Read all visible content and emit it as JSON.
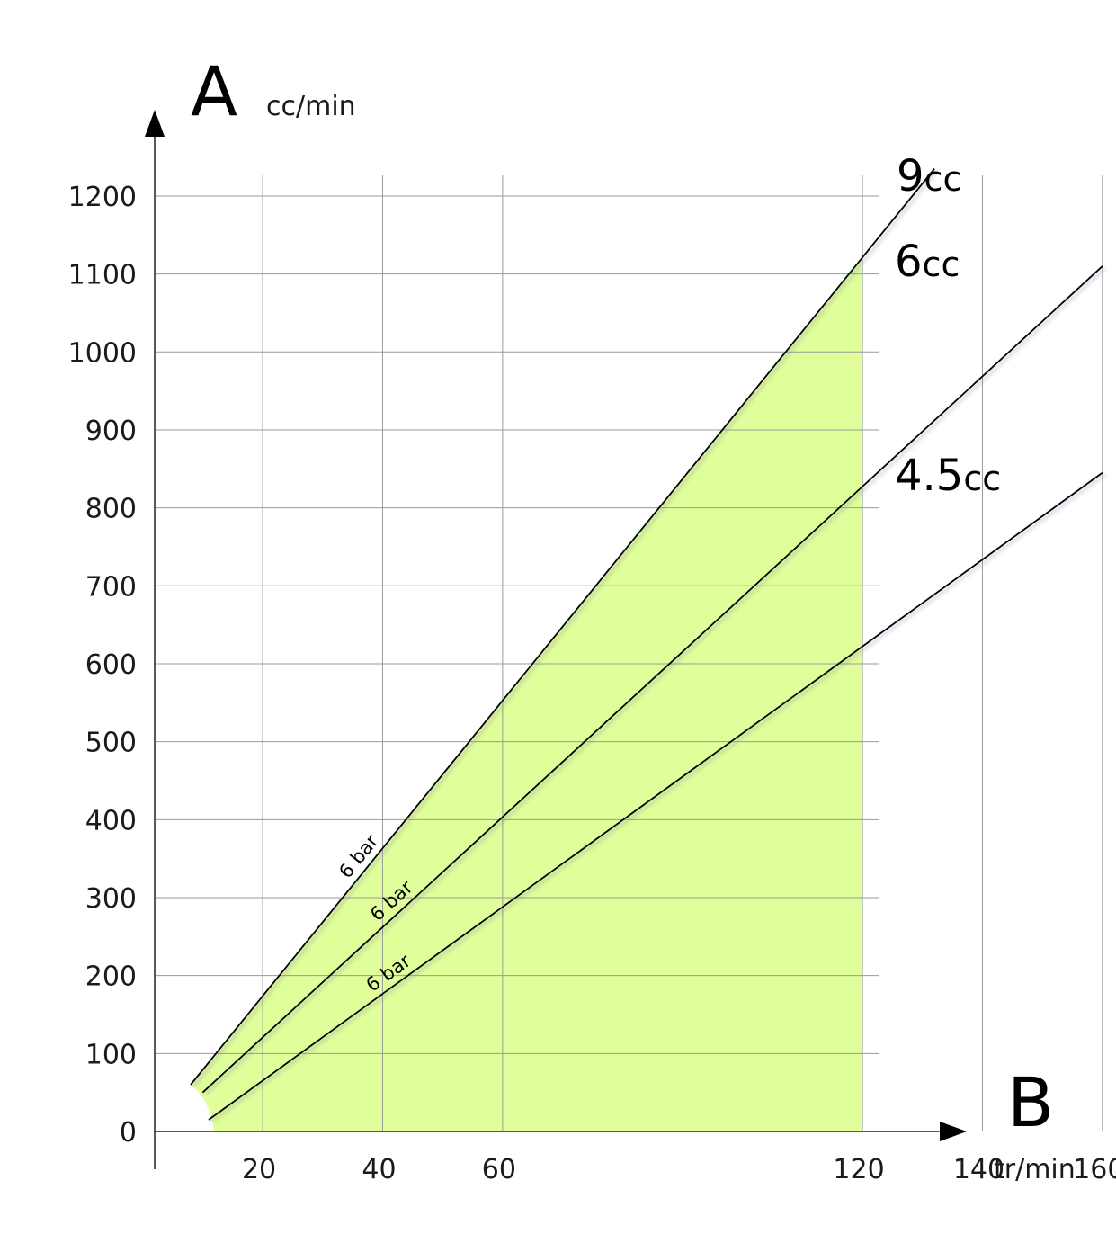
{
  "chart_data": {
    "type": "line",
    "y_axis": {
      "letter": "A",
      "unit": "cc/min",
      "ylim": [
        0,
        1200
      ],
      "ticks": [
        0,
        100,
        200,
        300,
        400,
        500,
        600,
        700,
        800,
        900,
        1000,
        1100,
        1200
      ]
    },
    "x_axis": {
      "letter": "B",
      "unit": "tr/min",
      "ticks": [
        20,
        40,
        60,
        120,
        140,
        160
      ]
    },
    "grid": true,
    "shaded_region": {
      "x_max": 120,
      "color": "#e0ff9a"
    },
    "series": [
      {
        "name_value": "9",
        "name_unit": "cc",
        "pressure_label": "6 bar",
        "points": [
          [
            8,
            60
          ],
          [
            132,
            1235
          ]
        ]
      },
      {
        "name_value": "6",
        "name_unit": "cc",
        "pressure_label": "6 bar",
        "points": [
          [
            10,
            50
          ],
          [
            160,
            1110
          ]
        ]
      },
      {
        "name_value": "4.5",
        "name_unit": "cc",
        "pressure_label": "6 bar",
        "points": [
          [
            11,
            15
          ],
          [
            160,
            845
          ]
        ]
      }
    ],
    "line_color": "#000000"
  }
}
